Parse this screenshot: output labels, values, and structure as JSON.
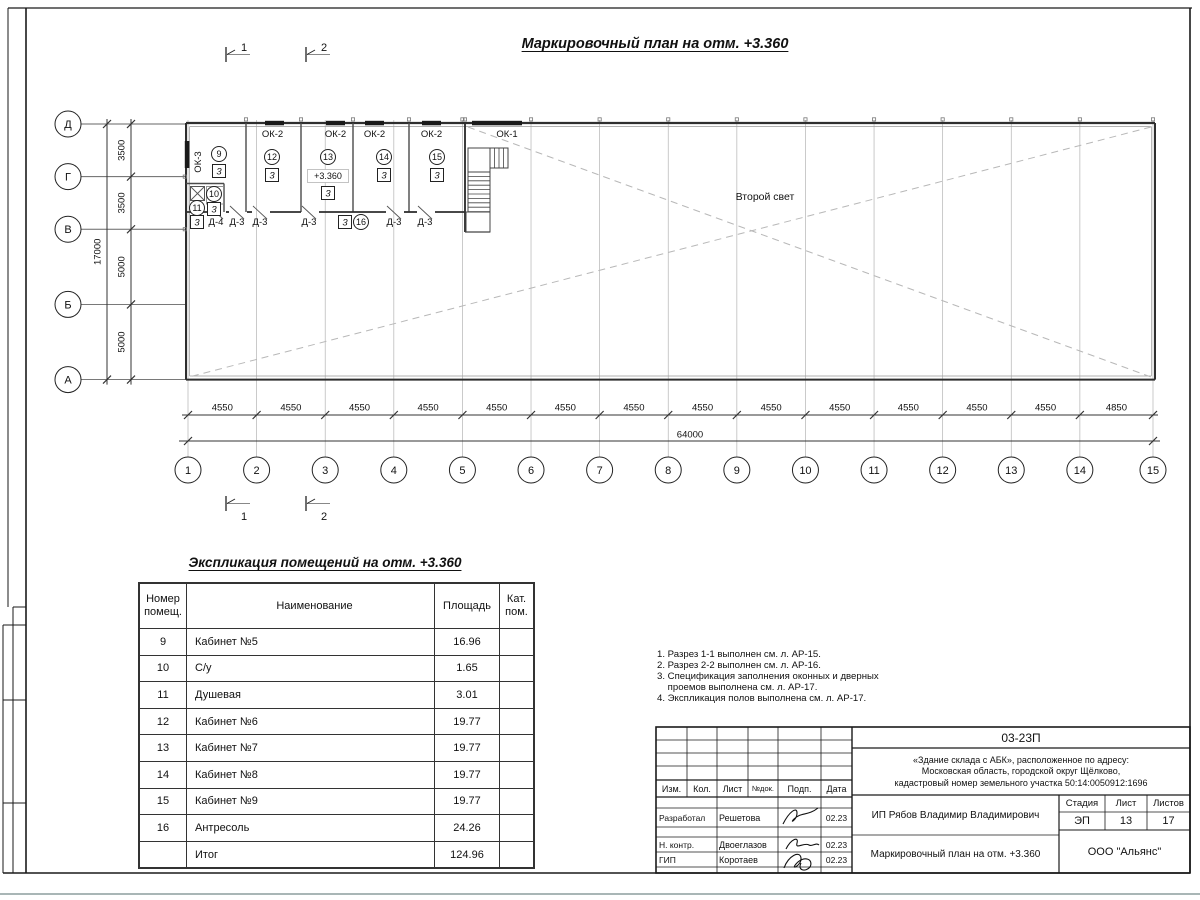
{
  "colors": {
    "line": "#1a1a1a",
    "wall": "#2e2e2e",
    "thin": "#8a8a8a",
    "dash": "#b8b8b8",
    "window": "#1a1a1a",
    "bottom_bar": "#a9b6b6"
  },
  "plan": {
    "title": "Маркировочный план на отм. +3.360",
    "second_light": "Второй свет",
    "elevation": "+3.360",
    "grid_columns": [
      "1",
      "2",
      "3",
      "4",
      "5",
      "6",
      "7",
      "8",
      "9",
      "10",
      "11",
      "12",
      "13",
      "14",
      "15"
    ],
    "col_dims": [
      "4550",
      "4550",
      "4550",
      "4550",
      "4550",
      "4550",
      "4550",
      "4550",
      "4550",
      "4550",
      "4550",
      "4550",
      "4550",
      "4850"
    ],
    "col_total": "64000",
    "grid_rows": [
      "Д",
      "Г",
      "В",
      "Б",
      "А"
    ],
    "row_dims": [
      "3500",
      "3500",
      "5000",
      "5000"
    ],
    "row_total": "17000",
    "section_marks": [
      "1",
      "2"
    ],
    "window_labels": {
      "ok1": "ОК-1",
      "ok2": "ОК-2",
      "ok3": "ОК-3"
    },
    "rooms": [
      {
        "num": "9",
        "cat": "3"
      },
      {
        "num": "10",
        "cat": "3"
      },
      {
        "num": "11",
        "cat": "3"
      },
      {
        "num": "12",
        "cat": "3"
      },
      {
        "num": "13",
        "cat": "3"
      },
      {
        "num": "14",
        "cat": "3"
      },
      {
        "num": "15",
        "cat": "3"
      },
      {
        "num": "16",
        "cat": "3"
      }
    ],
    "door_labels": [
      "Д-4",
      "Д-3",
      "Д-3",
      "Д-3",
      "Д-3",
      "Д-3"
    ]
  },
  "explication": {
    "title": "Экспликация помещений на отм. +3.360",
    "headers": [
      "Номер\nпомещ.",
      "Наименование",
      "Площадь",
      "Кат.\nпом."
    ],
    "rows": [
      [
        "9",
        "Кабинет №5",
        "16.96",
        ""
      ],
      [
        "10",
        "С/у",
        "1.65",
        ""
      ],
      [
        "11",
        "Душевая",
        "3.01",
        ""
      ],
      [
        "12",
        "Кабинет №6",
        "19.77",
        ""
      ],
      [
        "13",
        "Кабинет №7",
        "19.77",
        ""
      ],
      [
        "14",
        "Кабинет №8",
        "19.77",
        ""
      ],
      [
        "15",
        "Кабинет №9",
        "19.77",
        ""
      ],
      [
        "16",
        "Антресоль",
        "24.26",
        ""
      ],
      [
        "",
        "Итог",
        "124.96",
        ""
      ]
    ]
  },
  "notes": [
    "1. Разрез 1-1 выполнен см. л. АР-15.",
    "2. Разрез 2-2 выполнен см. л. АР-16.",
    "3. Спецификация заполнения оконных и дверных",
    "    проемов выполнена см. л. АР-17.",
    "4. Экспликация полов выполнена см. л. АР-17."
  ],
  "titleblock": {
    "code": "03-23П",
    "object_lines": [
      "«Здание склада с АБК», расположенное по адресу:",
      "Московская область, городской округ Щёлково,",
      "кадастровый номер земельного участка 50:14:0050912:1696"
    ],
    "header_cols": [
      "Изм.",
      "Кол.",
      "Лист",
      "№док.",
      "Подп.",
      "Дата"
    ],
    "roles": [
      {
        "role": "Разработал",
        "name": "Решетова",
        "date": "02.23"
      },
      {
        "role": "Н. контр.",
        "name": "Двоеглазов",
        "date": "02.23"
      },
      {
        "role": "ГИП",
        "name": "Коротаев",
        "date": "02.23"
      }
    ],
    "client": "ИП Рябов Владимир Владимирович",
    "sheet_title": "Маркировочный план на отм. +3.360",
    "company": "ООО \"Альянс\"",
    "stage_label": "Стадия",
    "sheet_label": "Лист",
    "sheets_label": "Листов",
    "stage": "ЭП",
    "sheet": "13",
    "sheets": "17"
  }
}
